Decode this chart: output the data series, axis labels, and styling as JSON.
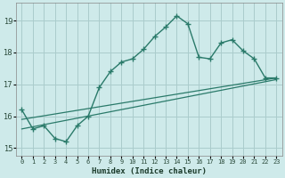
{
  "xlabel": "Humidex (Indice chaleur)",
  "bg_color": "#ceeaea",
  "grid_color": "#aacccc",
  "line_color": "#2a7a6a",
  "xlim": [
    -0.5,
    23.5
  ],
  "ylim": [
    14.75,
    19.55
  ],
  "yticks": [
    15,
    16,
    17,
    18,
    19
  ],
  "xtick_labels": [
    "0",
    "1",
    "2",
    "3",
    "4",
    "5",
    "6",
    "7",
    "8",
    "9",
    "10",
    "11",
    "12",
    "13",
    "14",
    "15",
    "16",
    "17",
    "18",
    "19",
    "20",
    "21",
    "22",
    "23"
  ],
  "line1_x": [
    0,
    1,
    2,
    3,
    4,
    5,
    6,
    7,
    8,
    9,
    10,
    11,
    12,
    13,
    14,
    15,
    16,
    17,
    18,
    19,
    20,
    21,
    22,
    23
  ],
  "line1_y": [
    16.2,
    15.6,
    15.7,
    15.3,
    15.2,
    15.7,
    16.0,
    16.9,
    17.4,
    17.7,
    17.8,
    18.1,
    18.5,
    18.8,
    19.15,
    18.9,
    17.85,
    17.8,
    18.3,
    18.4,
    18.05,
    17.8,
    17.2,
    17.2
  ],
  "line2_x": [
    0,
    23
  ],
  "line2_y": [
    15.9,
    17.2
  ],
  "line3_x": [
    0,
    23
  ],
  "line3_y": [
    15.6,
    17.15
  ]
}
